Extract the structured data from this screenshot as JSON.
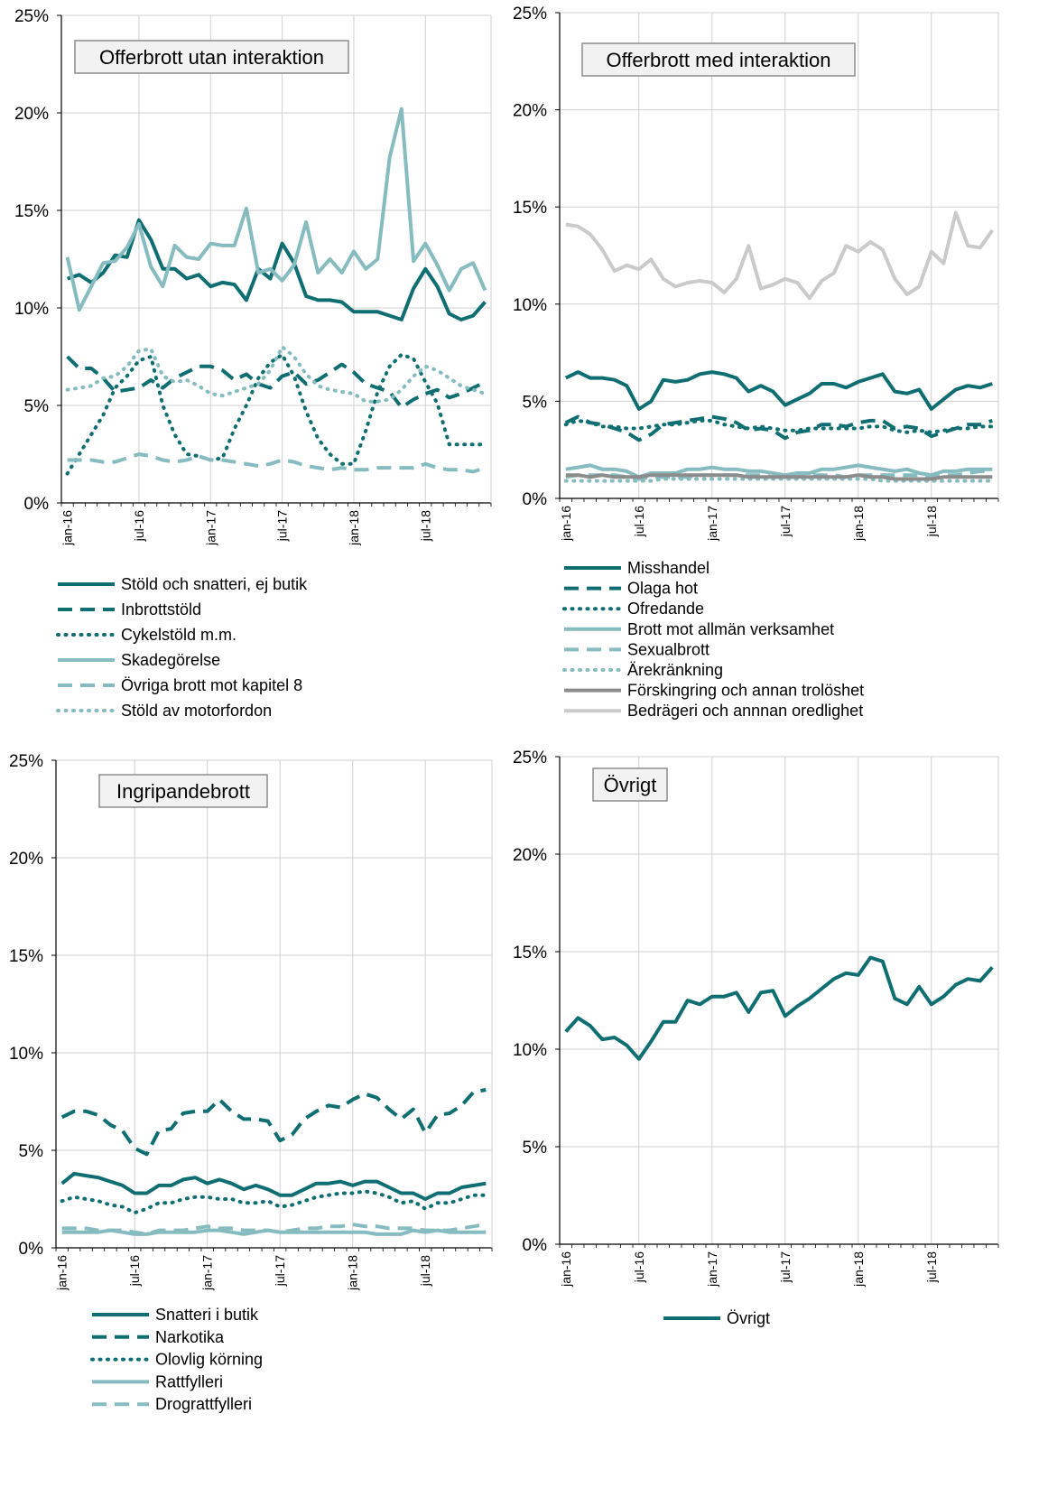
{
  "colors": {
    "dark_teal": "#0e6e72",
    "mid_teal": "#1f8a8c",
    "light_teal": "#86bcc0",
    "dark_gray": "#8c8c8c",
    "light_gray": "#cacaca",
    "axis": "#000000",
    "grid": "#d0d0d0"
  },
  "chart_data": [
    {
      "type": "line",
      "title": "Offerbrott utan interaktion",
      "ylim": [
        0,
        25
      ],
      "yticks": [
        "0%",
        "5%",
        "10%",
        "15%",
        "20%",
        "25%"
      ],
      "xticks": [
        "jan-16",
        "jul-16",
        "jan-17",
        "jul-17",
        "jan-18",
        "jul-18"
      ],
      "grid": true,
      "legend_position": "bottom",
      "series": [
        {
          "name": "Stöld och snatteri, ej butik",
          "color": "#0e6e72",
          "dash": "solid",
          "values": [
            11.5,
            11.7,
            11.3,
            11.8,
            12.7,
            12.6,
            14.5,
            13.5,
            12.0,
            12.0,
            11.5,
            11.7,
            11.1,
            11.3,
            11.2,
            10.4,
            12.0,
            11.5,
            13.3,
            12.3,
            10.6,
            10.4,
            10.4,
            10.3,
            9.8,
            9.8,
            9.8,
            9.6,
            9.4,
            11.0,
            12.0,
            11.1,
            9.7,
            9.4,
            9.6,
            10.3
          ]
        },
        {
          "name": "Inbrottstöld",
          "color": "#0e6e72",
          "dash": "dash",
          "values": [
            7.5,
            6.9,
            6.9,
            6.4,
            5.7,
            5.8,
            5.9,
            6.3,
            5.9,
            6.4,
            6.7,
            7.0,
            7.0,
            6.8,
            6.3,
            6.6,
            6.1,
            5.9,
            6.5,
            6.7,
            6.1,
            6.3,
            6.7,
            7.1,
            6.7,
            6.1,
            5.9,
            5.7,
            4.9,
            5.3,
            5.6,
            5.8,
            5.4,
            5.6,
            5.9,
            6.2
          ]
        },
        {
          "name": "Cykelstöld m.m.",
          "color": "#0e6e72",
          "dash": "dot",
          "values": [
            1.5,
            2.5,
            3.5,
            4.5,
            5.9,
            6.5,
            7.3,
            7.5,
            5.0,
            3.5,
            2.5,
            2.4,
            2.2,
            2.3,
            3.8,
            5.0,
            6.4,
            7.2,
            7.6,
            6.5,
            4.7,
            3.3,
            2.5,
            2.0,
            2.0,
            3.7,
            5.7,
            7.0,
            7.6,
            7.4,
            6.2,
            5.1,
            3.0,
            3.0,
            3.0,
            3.0
          ]
        },
        {
          "name": "Skadegörelse",
          "color": "#86bcc0",
          "dash": "solid",
          "values": [
            12.6,
            9.9,
            11.1,
            12.3,
            12.4,
            13.1,
            14.3,
            12.1,
            11.1,
            13.2,
            12.6,
            12.5,
            13.3,
            13.2,
            13.2,
            15.1,
            11.8,
            12.0,
            11.4,
            12.2,
            14.4,
            11.8,
            12.5,
            11.8,
            12.9,
            12.0,
            12.5,
            17.7,
            20.2,
            12.4,
            13.3,
            12.2,
            10.9,
            12.0,
            12.3,
            10.9
          ]
        },
        {
          "name": "Övriga brott mot kapitel 8",
          "color": "#86bcc0",
          "dash": "dash",
          "values": [
            2.2,
            2.2,
            2.2,
            2.1,
            2.1,
            2.3,
            2.5,
            2.4,
            2.2,
            2.1,
            2.2,
            2.4,
            2.2,
            2.2,
            2.1,
            2.0,
            1.9,
            2.0,
            2.2,
            2.1,
            1.9,
            1.8,
            1.7,
            1.8,
            1.7,
            1.7,
            1.8,
            1.8,
            1.8,
            1.8,
            2.0,
            1.8,
            1.7,
            1.7,
            1.6,
            1.8
          ]
        },
        {
          "name": "Stöld av motorfordon",
          "color": "#86bcc0",
          "dash": "dot",
          "values": [
            5.8,
            5.9,
            6.0,
            6.4,
            6.5,
            7.0,
            7.8,
            7.9,
            6.5,
            6.2,
            6.3,
            6.0,
            5.6,
            5.5,
            5.7,
            5.9,
            6.1,
            6.8,
            8.0,
            7.5,
            6.6,
            6.0,
            5.8,
            5.7,
            5.6,
            5.2,
            5.2,
            5.3,
            5.8,
            6.5,
            7.0,
            6.8,
            6.4,
            6.0,
            5.8,
            5.6
          ]
        }
      ]
    },
    {
      "type": "line",
      "title": "Offerbrott med interaktion",
      "ylim": [
        0,
        25
      ],
      "yticks": [
        "0%",
        "5%",
        "10%",
        "15%",
        "20%",
        "25%"
      ],
      "xticks": [
        "jan-16",
        "jul-16",
        "jan-17",
        "jul-17",
        "jan-18",
        "jul-18"
      ],
      "grid": true,
      "legend_position": "bottom",
      "series": [
        {
          "name": "Misshandel",
          "color": "#0e6e72",
          "dash": "solid",
          "values": [
            6.2,
            6.5,
            6.2,
            6.2,
            6.1,
            5.8,
            4.6,
            5.0,
            6.1,
            6.0,
            6.1,
            6.4,
            6.5,
            6.4,
            6.2,
            5.5,
            5.8,
            5.5,
            4.8,
            5.1,
            5.4,
            5.9,
            5.9,
            5.7,
            6.0,
            6.2,
            6.4,
            5.5,
            5.4,
            5.6,
            4.6,
            5.1,
            5.6,
            5.8,
            5.7,
            5.9
          ]
        },
        {
          "name": "Olaga hot",
          "color": "#0e6e72",
          "dash": "dash",
          "values": [
            3.9,
            4.2,
            3.9,
            3.8,
            3.6,
            3.4,
            3.0,
            3.3,
            3.8,
            3.9,
            4.0,
            4.1,
            4.2,
            4.1,
            3.9,
            3.5,
            3.6,
            3.5,
            3.1,
            3.4,
            3.5,
            3.8,
            3.8,
            3.7,
            3.9,
            4.0,
            4.0,
            3.6,
            3.7,
            3.6,
            3.2,
            3.4,
            3.6,
            3.8,
            3.8,
            4.0
          ]
        },
        {
          "name": "Ofredande",
          "color": "#0e6e72",
          "dash": "dot",
          "values": [
            3.8,
            4.0,
            3.9,
            3.7,
            3.7,
            3.6,
            3.6,
            3.7,
            3.8,
            3.8,
            3.9,
            4.0,
            4.0,
            3.8,
            3.7,
            3.6,
            3.7,
            3.6,
            3.5,
            3.5,
            3.6,
            3.6,
            3.6,
            3.6,
            3.6,
            3.7,
            3.7,
            3.5,
            3.4,
            3.5,
            3.4,
            3.5,
            3.6,
            3.6,
            3.7,
            3.7
          ]
        },
        {
          "name": "Brott mot allmän verksamhet",
          "color": "#86bcc0",
          "dash": "solid",
          "values": [
            1.5,
            1.6,
            1.7,
            1.5,
            1.5,
            1.4,
            1.1,
            1.3,
            1.3,
            1.3,
            1.5,
            1.5,
            1.6,
            1.5,
            1.5,
            1.4,
            1.4,
            1.3,
            1.2,
            1.3,
            1.3,
            1.5,
            1.5,
            1.6,
            1.7,
            1.6,
            1.5,
            1.4,
            1.5,
            1.3,
            1.2,
            1.4,
            1.4,
            1.5,
            1.5,
            1.5
          ]
        },
        {
          "name": "Sexualbrott",
          "color": "#86bcc0",
          "dash": "dash",
          "values": [
            1.1,
            1.2,
            1.2,
            1.2,
            1.2,
            1.1,
            1.0,
            1.1,
            1.1,
            1.1,
            1.1,
            1.2,
            1.2,
            1.2,
            1.2,
            1.2,
            1.2,
            1.1,
            1.1,
            1.1,
            1.2,
            1.2,
            1.2,
            1.1,
            1.2,
            1.2,
            1.2,
            1.2,
            1.2,
            1.2,
            1.1,
            1.2,
            1.2,
            1.3,
            1.4,
            1.4
          ]
        },
        {
          "name": "Ärekränkning",
          "color": "#86bcc0",
          "dash": "dot",
          "values": [
            0.9,
            0.9,
            0.9,
            0.9,
            0.9,
            0.9,
            0.9,
            0.9,
            1.0,
            1.0,
            1.0,
            1.0,
            1.0,
            1.0,
            1.0,
            1.0,
            1.0,
            1.0,
            1.0,
            1.0,
            1.0,
            1.0,
            1.0,
            1.0,
            1.0,
            1.0,
            0.9,
            0.9,
            0.9,
            0.9,
            0.9,
            0.9,
            0.9,
            0.9,
            0.9,
            0.9
          ]
        },
        {
          "name": "Förskingring och annan trolöshet",
          "color": "#8c8c8c",
          "dash": "solid",
          "values": [
            1.2,
            1.2,
            1.1,
            1.2,
            1.1,
            1.1,
            1.1,
            1.2,
            1.2,
            1.2,
            1.2,
            1.2,
            1.2,
            1.2,
            1.2,
            1.1,
            1.1,
            1.1,
            1.1,
            1.1,
            1.1,
            1.1,
            1.1,
            1.1,
            1.2,
            1.1,
            1.1,
            1.0,
            1.0,
            1.0,
            1.0,
            1.1,
            1.1,
            1.1,
            1.1,
            1.1
          ]
        },
        {
          "name": "Bedrägeri och annnan oredlighet",
          "color": "#cacaca",
          "dash": "solid",
          "values": [
            14.1,
            14.0,
            13.6,
            12.8,
            11.7,
            12.0,
            11.8,
            12.3,
            11.3,
            10.9,
            11.1,
            11.2,
            11.1,
            10.6,
            11.3,
            13.0,
            10.8,
            11.0,
            11.3,
            11.1,
            10.3,
            11.2,
            11.6,
            13.0,
            12.7,
            13.2,
            12.8,
            11.3,
            10.5,
            10.9,
            12.7,
            12.1,
            14.7,
            13.0,
            12.9,
            13.8
          ]
        }
      ]
    },
    {
      "type": "line",
      "title": "Ingripandebrott",
      "ylim": [
        0,
        25
      ],
      "yticks": [
        "0%",
        "5%",
        "10%",
        "15%",
        "20%",
        "25%"
      ],
      "xticks": [
        "jan-16",
        "jul-16",
        "jan-17",
        "jul-17",
        "jan-18",
        "jul-18"
      ],
      "grid": true,
      "legend_position": "bottom",
      "series": [
        {
          "name": "Snatteri i butik",
          "color": "#0e6e72",
          "dash": "solid",
          "values": [
            3.3,
            3.8,
            3.7,
            3.6,
            3.4,
            3.2,
            2.8,
            2.8,
            3.2,
            3.2,
            3.5,
            3.6,
            3.3,
            3.5,
            3.3,
            3.0,
            3.2,
            3.0,
            2.7,
            2.7,
            3.0,
            3.3,
            3.3,
            3.4,
            3.2,
            3.4,
            3.4,
            3.1,
            2.8,
            2.8,
            2.5,
            2.8,
            2.8,
            3.1,
            3.2,
            3.3
          ]
        },
        {
          "name": "Narkotika",
          "color": "#0e6e72",
          "dash": "dash",
          "values": [
            6.7,
            7.0,
            7.0,
            6.8,
            6.3,
            6.0,
            5.1,
            4.8,
            6.0,
            6.1,
            6.9,
            7.0,
            7.0,
            7.6,
            7.0,
            6.6,
            6.6,
            6.5,
            5.5,
            5.8,
            6.6,
            7.0,
            7.3,
            7.2,
            7.6,
            7.9,
            7.7,
            7.1,
            6.6,
            7.1,
            5.9,
            6.8,
            6.9,
            7.3,
            8.0,
            8.1
          ]
        },
        {
          "name": "Olovlig körning",
          "color": "#0e6e72",
          "dash": "dot",
          "values": [
            2.4,
            2.6,
            2.5,
            2.4,
            2.2,
            2.1,
            1.8,
            2.0,
            2.3,
            2.3,
            2.5,
            2.6,
            2.6,
            2.5,
            2.5,
            2.3,
            2.3,
            2.4,
            2.1,
            2.2,
            2.4,
            2.6,
            2.7,
            2.8,
            2.8,
            2.9,
            2.8,
            2.6,
            2.3,
            2.4,
            2.0,
            2.3,
            2.3,
            2.5,
            2.7,
            2.7
          ]
        },
        {
          "name": "Rattfylleri",
          "color": "#86bcc0",
          "dash": "solid",
          "values": [
            0.8,
            0.8,
            0.8,
            0.8,
            0.9,
            0.8,
            0.7,
            0.7,
            0.8,
            0.8,
            0.8,
            0.8,
            0.9,
            0.9,
            0.8,
            0.7,
            0.8,
            0.9,
            0.8,
            0.8,
            0.8,
            0.8,
            0.8,
            0.8,
            0.8,
            0.8,
            0.7,
            0.7,
            0.7,
            0.9,
            0.8,
            0.9,
            0.8,
            0.8,
            0.8,
            0.8
          ]
        },
        {
          "name": "Drograttfylleri",
          "color": "#86bcc0",
          "dash": "dash",
          "values": [
            1.0,
            1.0,
            1.0,
            0.9,
            0.9,
            0.9,
            0.8,
            0.7,
            0.9,
            0.9,
            0.9,
            1.0,
            1.1,
            1.0,
            1.0,
            0.9,
            0.9,
            0.9,
            0.8,
            0.9,
            1.0,
            1.0,
            1.1,
            1.1,
            1.2,
            1.1,
            1.1,
            1.0,
            1.0,
            1.0,
            0.9,
            0.9,
            0.9,
            1.0,
            1.1,
            1.2
          ]
        }
      ]
    },
    {
      "type": "line",
      "title": "Övrigt",
      "ylim": [
        0,
        25
      ],
      "yticks": [
        "0%",
        "5%",
        "10%",
        "15%",
        "20%",
        "25%"
      ],
      "xticks": [
        "jan-16",
        "jul-16",
        "jan-17",
        "jul-17",
        "jan-18",
        "jul-18"
      ],
      "grid": true,
      "legend_position": "bottom",
      "series": [
        {
          "name": "Övrigt",
          "color": "#0e6e72",
          "dash": "solid",
          "values": [
            10.9,
            11.6,
            11.2,
            10.5,
            10.6,
            10.2,
            9.5,
            10.4,
            11.4,
            11.4,
            12.5,
            12.3,
            12.7,
            12.7,
            12.9,
            11.9,
            12.9,
            13.0,
            11.7,
            12.2,
            12.6,
            13.1,
            13.6,
            13.9,
            13.8,
            14.7,
            14.5,
            12.6,
            12.3,
            13.2,
            12.3,
            12.7,
            13.3,
            13.6,
            13.5,
            14.2
          ]
        }
      ]
    }
  ]
}
